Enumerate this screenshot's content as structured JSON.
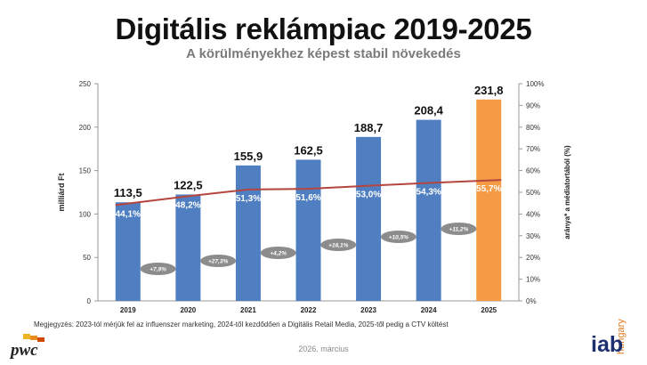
{
  "header": {
    "title": "Digitális reklámpiac 2019-2025",
    "subtitle": "A körülményekhez képest stabil növekedés"
  },
  "chart_data": {
    "type": "bar",
    "categories": [
      "2019",
      "2020",
      "2021",
      "2022",
      "2023",
      "2024",
      "2025"
    ],
    "values": [
      113.5,
      122.5,
      155.9,
      162.5,
      188.7,
      208.4,
      231.8
    ],
    "value_labels": [
      "113,5",
      "122,5",
      "155,9",
      "162,5",
      "188,7",
      "208,4",
      "231,8"
    ],
    "bar_colors": [
      "#4f7fc1",
      "#4f7fc1",
      "#4f7fc1",
      "#4f7fc1",
      "#4f7fc1",
      "#4f7fc1",
      "#f59a45"
    ],
    "ylabel": "milliárd Ft",
    "ylim": [
      0,
      250
    ],
    "yticks": [
      0,
      50,
      100,
      150,
      200,
      250
    ],
    "y2label": "aránya* a médiatortából (%)",
    "y2lim": [
      0,
      100
    ],
    "y2ticks": [
      "0%",
      "10%",
      "20%",
      "30%",
      "40%",
      "50%",
      "60%",
      "70%",
      "80%",
      "90%",
      "100%"
    ],
    "share_series": {
      "values": [
        44.1,
        48.2,
        51.3,
        51.6,
        53.0,
        54.3,
        55.7
      ],
      "labels": [
        "44,1%",
        "48,2%",
        "51,3%",
        "51,6%",
        "53,0%",
        "54,3%",
        "55,7%"
      ],
      "color": "#b5453f"
    },
    "growth_labels": [
      "+7,9%",
      "+27,3%",
      "+4,2%",
      "+16,1%",
      "+10,5%",
      "+11,2%"
    ],
    "grid": false
  },
  "footer": {
    "note": "Megjegyzés: 2023-tól mérjük fel az influenszer marketing, 2024-től kezdődően a Digitális Retail Media, 2025-től pedig a CTV költést",
    "date": "2026. március",
    "logo_left": "pwc",
    "logo_right": "iab",
    "logo_right_sub": "hungary"
  }
}
